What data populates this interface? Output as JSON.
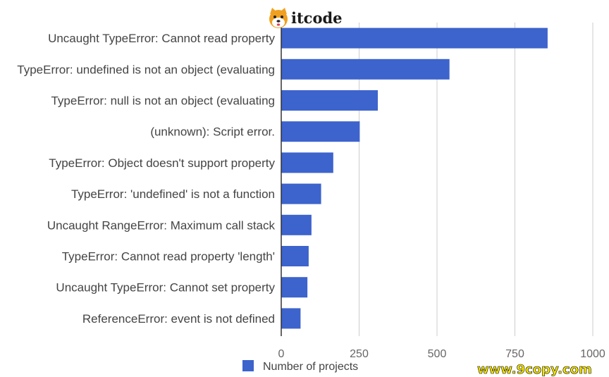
{
  "watermark": {
    "logo_text": "itcode",
    "url_text": "www.9copy.com"
  },
  "chart_data": {
    "type": "bar",
    "orientation": "horizontal",
    "categories": [
      "Uncaught TypeError: Cannot read property",
      "TypeError: undefined is not an object (evaluating",
      "TypeError: null is not an object (evaluating",
      "(unknown): Script error.",
      "TypeError: Object doesn't support property",
      "TypeError: 'undefined' is not a function",
      "Uncaught RangeError: Maximum call stack",
      "TypeError: Cannot read property 'length'",
      "Uncaught TypeError: Cannot set property",
      "ReferenceError: event is not defined"
    ],
    "series": [
      {
        "name": "Number of projects",
        "values": [
          855,
          540,
          310,
          252,
          167,
          128,
          97,
          88,
          84,
          62
        ]
      }
    ],
    "xlim": [
      0,
      1000
    ],
    "xticks": [
      0,
      250,
      500,
      750,
      1000
    ],
    "xtick_labels": [
      "0",
      "250",
      "500",
      "750",
      "1000"
    ],
    "grid": "vertical",
    "legend": "bottom",
    "colors": {
      "bar": "#3d63cc",
      "grid": "#cccccc",
      "axis": "#333333"
    }
  }
}
